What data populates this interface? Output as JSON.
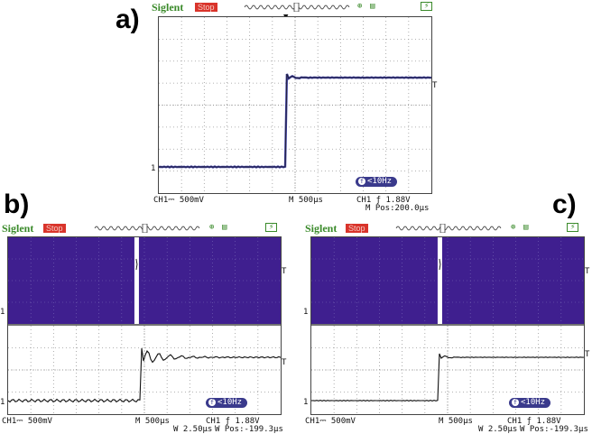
{
  "panels": [
    {
      "letter": "a)",
      "brand": "Siglent",
      "status": "Stop",
      "ch_scale": "CH1⎓ 500mV",
      "bw_icon": "bandwidth-limit-icon",
      "timebase": "M 500µs",
      "trigger": "CH1 ƒ 1.88V",
      "zoom": "",
      "position": "M Pos:200.0µs",
      "freq": "<10Hz",
      "ch_marker": "1",
      "trig_marker": "T",
      "display": "single",
      "waveform": {
        "pre_level": 0.0,
        "post_level": 1.0,
        "edge_time": 0.47,
        "ringing": false
      },
      "colors": {
        "trace": "#3c3c9c",
        "grid": "#9a9a9a",
        "bg": "#ffffff"
      }
    },
    {
      "letter": "b)",
      "brand": "Siglent",
      "status": "Stop",
      "ch_scale": "CH1⎓ 500mV",
      "bw_icon": "bandwidth-limit-icon",
      "timebase": "M 500µs",
      "trigger": "CH1 ƒ 1.88V",
      "zoom": "W 2.50µs",
      "position": "W Pos:-199.3µs",
      "freq": "<10Hz",
      "ch_marker": "1",
      "trig_marker": "T",
      "display": "zoom",
      "waveform": {
        "pre_level": 0.0,
        "post_level": 1.0,
        "edge_time": 0.49,
        "ringing": true
      },
      "colors": {
        "trace": "#111111",
        "grid": "#9a9a9a",
        "bg": "#ffffff",
        "overview": "#3f1f8f"
      }
    },
    {
      "letter": "c)",
      "brand": "Siglent",
      "status": "Stop",
      "ch_scale": "CH1⎓ 500mV",
      "bw_icon": "bandwidth-limit-icon",
      "timebase": "M 500µs",
      "trigger": "CH1 ƒ 1.88V",
      "zoom": "W 2.50µs",
      "position": "W Pos:-199.3µs",
      "freq": "<10Hz",
      "ch_marker": "1",
      "trig_marker": "T",
      "display": "zoom",
      "waveform": {
        "pre_level": 0.0,
        "post_level": 1.0,
        "edge_time": 0.47,
        "ringing": false
      },
      "colors": {
        "trace": "#111111",
        "grid": "#9a9a9a",
        "bg": "#ffffff",
        "overview": "#3f1f8f"
      }
    }
  ]
}
